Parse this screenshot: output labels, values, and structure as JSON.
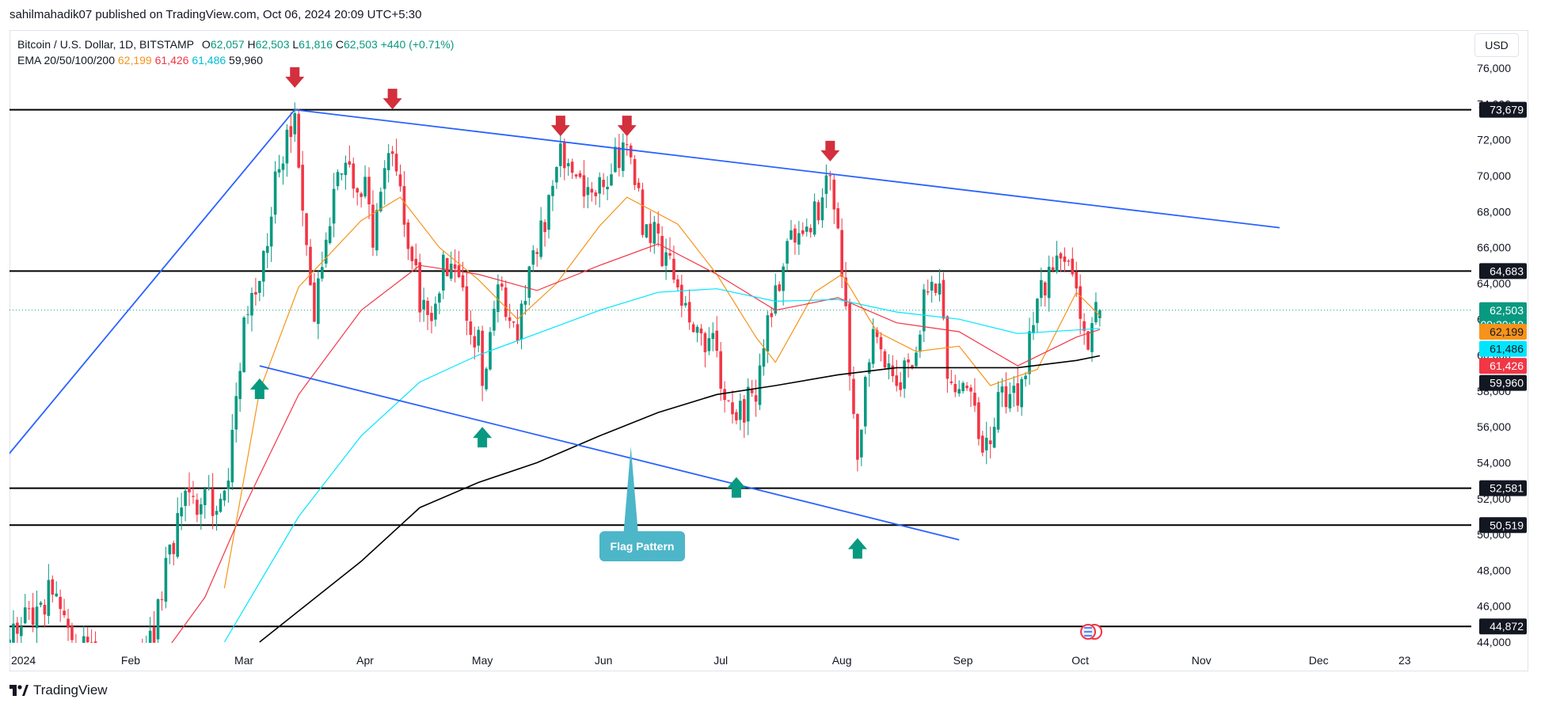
{
  "publisher": "sahilmahadik07 published on TradingView.com, Oct 06, 2024 20:09 UTC+5:30",
  "footer_brand": "TradingView",
  "currency_button": "USD",
  "legend": {
    "title": "Bitcoin / U.S. Dollar, 1D, BITSTAMP",
    "open_label": "O",
    "open": "62,057",
    "high_label": "H",
    "high": "62,503",
    "low_label": "L",
    "low": "61,816",
    "close_label": "C",
    "close": "62,503",
    "change": "+440 (+0.71%)",
    "ema_label": "EMA 20/50/100/200",
    "ema20": "62,199",
    "ema50": "61,426",
    "ema100": "61,486",
    "ema200": "59,960"
  },
  "colors": {
    "up": "#089981",
    "down": "#f23645",
    "ema20": "#f7931a",
    "ema50": "#f23645",
    "ema100": "#00e5ff",
    "ema200": "#000000",
    "trendline": "#2962ff",
    "marker_up": "#089981",
    "marker_down": "#d32f3d",
    "annotation": "#4db6c8"
  },
  "chart_data": {
    "type": "candlestick",
    "symbol": "Bitcoin / U.S. Dollar",
    "interval": "1D",
    "exchange": "BITSTAMP",
    "ylim": [
      44000,
      77000
    ],
    "y_ticks": [
      44000,
      46000,
      48000,
      50000,
      52000,
      54000,
      56000,
      58000,
      60000,
      62000,
      64000,
      66000,
      68000,
      70000,
      72000,
      74000,
      76000
    ],
    "y_tick_labels": [
      "44,000",
      "46,000",
      "48,000",
      "50,000",
      "52,000",
      "54,000",
      "56,000",
      "58,000",
      "60,000",
      "62,000",
      "64,000",
      "66,000",
      "68,000",
      "70,000",
      "72,000",
      "74,000",
      "76,000"
    ],
    "x_range": [
      "2024-01-01",
      "2024-12-31"
    ],
    "x_ticks": [
      "2024-01-01",
      "2024-02-01",
      "2024-03-01",
      "2024-04-01",
      "2024-05-01",
      "2024-06-01",
      "2024-07-01",
      "2024-08-01",
      "2024-09-01",
      "2024-10-01",
      "2024-11-01",
      "2024-12-01",
      "2024-12-23"
    ],
    "x_tick_labels": [
      "2024",
      "Feb",
      "Mar",
      "Apr",
      "May",
      "Jun",
      "Jul",
      "Aug",
      "Sep",
      "Oct",
      "Nov",
      "Dec",
      "23"
    ],
    "price_anchors": [
      [
        "2024-01-01",
        44000
      ],
      [
        "2024-01-12",
        47000
      ],
      [
        "2024-01-14",
        45000
      ],
      [
        "2024-01-22",
        43000
      ],
      [
        "2024-02-05",
        42800
      ],
      [
        "2024-02-09",
        47000
      ],
      [
        "2024-02-15",
        52000
      ],
      [
        "2024-02-25",
        51500
      ],
      [
        "2024-02-28",
        57000
      ],
      [
        "2024-03-01",
        62000
      ],
      [
        "2024-03-05",
        63500
      ],
      [
        "2024-03-08",
        68500
      ],
      [
        "2024-03-12",
        72000
      ],
      [
        "2024-03-14",
        73100
      ],
      [
        "2024-03-19",
        62500
      ],
      [
        "2024-03-23",
        67500
      ],
      [
        "2024-03-26",
        70500
      ],
      [
        "2024-04-01",
        69500
      ],
      [
        "2024-04-03",
        66500
      ],
      [
        "2024-04-08",
        71500
      ],
      [
        "2024-04-12",
        66000
      ],
      [
        "2024-04-17",
        61500
      ],
      [
        "2024-04-21",
        65000
      ],
      [
        "2024-04-25",
        64000
      ],
      [
        "2024-04-30",
        60500
      ],
      [
        "2024-05-01",
        57500
      ],
      [
        "2024-05-05",
        63500
      ],
      [
        "2024-05-10",
        61000
      ],
      [
        "2024-05-15",
        66000
      ],
      [
        "2024-05-20",
        70500
      ],
      [
        "2024-05-21",
        71200
      ],
      [
        "2024-05-28",
        68500
      ],
      [
        "2024-06-05",
        71000
      ],
      [
        "2024-06-07",
        71500
      ],
      [
        "2024-06-11",
        67500
      ],
      [
        "2024-06-18",
        65200
      ],
      [
        "2024-06-24",
        60500
      ],
      [
        "2024-06-28",
        61000
      ],
      [
        "2024-07-05",
        56500
      ],
      [
        "2024-07-10",
        58000
      ],
      [
        "2024-07-15",
        63500
      ],
      [
        "2024-07-21",
        67500
      ],
      [
        "2024-07-26",
        67800
      ],
      [
        "2024-07-29",
        69800
      ],
      [
        "2024-08-01",
        65000
      ],
      [
        "2024-08-05",
        54000
      ],
      [
        "2024-08-07",
        58000
      ],
      [
        "2024-08-09",
        60800
      ],
      [
        "2024-08-14",
        58500
      ],
      [
        "2024-08-19",
        59000
      ],
      [
        "2024-08-23",
        64000
      ],
      [
        "2024-08-26",
        64000
      ],
      [
        "2024-08-28",
        59500
      ],
      [
        "2024-09-03",
        57500
      ],
      [
        "2024-09-06",
        53900
      ],
      [
        "2024-09-10",
        57500
      ],
      [
        "2024-09-16",
        58000
      ],
      [
        "2024-09-20",
        63000
      ],
      [
        "2024-09-27",
        65800
      ],
      [
        "2024-09-30",
        63500
      ],
      [
        "2024-10-02",
        60700
      ],
      [
        "2024-10-06",
        62503
      ]
    ],
    "ema_series": [
      {
        "name": "EMA 20",
        "last": 62199,
        "points": [
          [
            "2024-02-25",
            47000
          ],
          [
            "2024-03-05",
            58000
          ],
          [
            "2024-03-15",
            63800
          ],
          [
            "2024-03-31",
            67500
          ],
          [
            "2024-04-10",
            68800
          ],
          [
            "2024-04-20",
            66000
          ],
          [
            "2024-04-30",
            64200
          ],
          [
            "2024-05-10",
            62000
          ],
          [
            "2024-05-20",
            64000
          ],
          [
            "2024-05-31",
            67200
          ],
          [
            "2024-06-07",
            68800
          ],
          [
            "2024-06-20",
            67300
          ],
          [
            "2024-06-30",
            64500
          ],
          [
            "2024-07-10",
            61000
          ],
          [
            "2024-07-15",
            59600
          ],
          [
            "2024-07-25",
            63500
          ],
          [
            "2024-08-01",
            64500
          ],
          [
            "2024-08-10",
            61300
          ],
          [
            "2024-08-20",
            60200
          ],
          [
            "2024-08-31",
            60500
          ],
          [
            "2024-09-08",
            58300
          ],
          [
            "2024-09-20",
            59200
          ],
          [
            "2024-09-30",
            63500
          ],
          [
            "2024-10-06",
            62199
          ]
        ]
      },
      {
        "name": "EMA 50",
        "last": 61426,
        "points": [
          [
            "2024-02-10",
            43500
          ],
          [
            "2024-02-20",
            46500
          ],
          [
            "2024-03-01",
            51500
          ],
          [
            "2024-03-15",
            57800
          ],
          [
            "2024-03-31",
            62500
          ],
          [
            "2024-04-15",
            65000
          ],
          [
            "2024-04-30",
            64500
          ],
          [
            "2024-05-15",
            63600
          ],
          [
            "2024-05-31",
            65000
          ],
          [
            "2024-06-15",
            66200
          ],
          [
            "2024-06-30",
            64500
          ],
          [
            "2024-07-15",
            62500
          ],
          [
            "2024-07-31",
            63200
          ],
          [
            "2024-08-15",
            61800
          ],
          [
            "2024-08-31",
            61300
          ],
          [
            "2024-09-15",
            59400
          ],
          [
            "2024-09-30",
            61000
          ],
          [
            "2024-10-06",
            61426
          ]
        ]
      },
      {
        "name": "EMA 100",
        "last": 61486,
        "points": [
          [
            "2024-02-25",
            44000
          ],
          [
            "2024-03-15",
            51000
          ],
          [
            "2024-03-31",
            55500
          ],
          [
            "2024-04-15",
            58500
          ],
          [
            "2024-04-30",
            60000
          ],
          [
            "2024-05-15",
            61200
          ],
          [
            "2024-05-31",
            62500
          ],
          [
            "2024-06-15",
            63500
          ],
          [
            "2024-06-30",
            63700
          ],
          [
            "2024-07-15",
            63000
          ],
          [
            "2024-07-31",
            63100
          ],
          [
            "2024-08-15",
            62400
          ],
          [
            "2024-08-31",
            62000
          ],
          [
            "2024-09-15",
            61200
          ],
          [
            "2024-09-30",
            61400
          ],
          [
            "2024-10-06",
            61486
          ]
        ]
      },
      {
        "name": "EMA 200",
        "last": 59960,
        "points": [
          [
            "2024-03-05",
            44000
          ],
          [
            "2024-03-31",
            48500
          ],
          [
            "2024-04-15",
            51500
          ],
          [
            "2024-04-30",
            52900
          ],
          [
            "2024-05-15",
            54000
          ],
          [
            "2024-05-31",
            55500
          ],
          [
            "2024-06-15",
            56800
          ],
          [
            "2024-06-30",
            57800
          ],
          [
            "2024-07-15",
            58300
          ],
          [
            "2024-07-31",
            58900
          ],
          [
            "2024-08-15",
            59300
          ],
          [
            "2024-08-31",
            59300
          ],
          [
            "2024-09-15",
            59300
          ],
          [
            "2024-09-30",
            59700
          ],
          [
            "2024-10-06",
            59960
          ]
        ]
      }
    ],
    "horizontal_levels": [
      73679,
      64683,
      52581,
      50519,
      44872
    ],
    "trendlines": [
      {
        "name": "flag-upper",
        "from": [
          "2024-03-14",
          73679
        ],
        "to": [
          "2024-11-21",
          67100
        ]
      },
      {
        "name": "flag-lower",
        "from": [
          "2024-03-05",
          59400
        ],
        "to": [
          "2024-08-31",
          49700
        ]
      },
      {
        "name": "pole",
        "from": [
          "2023-12-30",
          54000
        ],
        "to": [
          "2024-03-14",
          73679
        ]
      }
    ],
    "resistance_markers": [
      "2024-03-14",
      "2024-04-08",
      "2024-05-21",
      "2024-06-07",
      "2024-07-29"
    ],
    "support_markers": [
      "2024-03-05",
      "2024-05-01",
      "2024-07-05",
      "2024-08-05"
    ],
    "annotation": {
      "text": "Flag Pattern",
      "point_to": [
        "2024-06-08",
        54900
      ]
    },
    "price_labels": [
      {
        "value": "73,679",
        "y": 73679,
        "style": "dark"
      },
      {
        "value": "64,683",
        "y": 64683,
        "style": "dark"
      },
      {
        "value": "62,503",
        "y": 62503,
        "style": "green"
      },
      {
        "value": "09:20:19",
        "y": 61700,
        "style": "green"
      },
      {
        "value": "62,199",
        "y": 61300,
        "style": "orange"
      },
      {
        "value": "61,486",
        "y": 60350,
        "style": "cyan"
      },
      {
        "value": "61,426",
        "y": 59400,
        "style": "red"
      },
      {
        "value": "59,960",
        "y": 58450,
        "style": "dark"
      },
      {
        "value": "52,581",
        "y": 52581,
        "style": "dark"
      },
      {
        "value": "50,519",
        "y": 50519,
        "style": "dark"
      },
      {
        "value": "44,872",
        "y": 44872,
        "style": "dark"
      }
    ],
    "last_price": 62503
  }
}
